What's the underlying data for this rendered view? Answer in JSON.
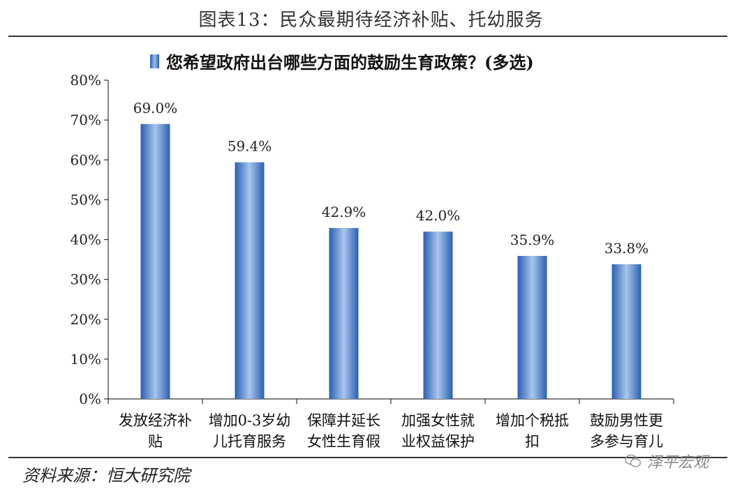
{
  "figure_title": "图表13：民众最期待经济补贴、托幼服务",
  "source": "资料来源：恒大研究院",
  "watermark": "泽平宏观",
  "chart_data": {
    "type": "bar",
    "title": "您希望政府出台哪些方面的鼓励生育政策？(多选)",
    "categories": [
      [
        "发放经济补",
        "贴"
      ],
      [
        "增加0-3岁幼",
        "儿托育服务"
      ],
      [
        "保障并延长",
        "女性生育假"
      ],
      [
        "加强女性就",
        "业权益保护"
      ],
      [
        "增加个税抵",
        "扣"
      ],
      [
        "鼓励男性更",
        "多参与育儿"
      ]
    ],
    "values": [
      69.0,
      59.4,
      42.9,
      42.0,
      35.9,
      33.8
    ],
    "data_labels": [
      "69.0%",
      "59.4%",
      "42.9%",
      "42.0%",
      "35.9%",
      "33.8%"
    ],
    "ylim": [
      0,
      80
    ],
    "yticks": [
      "0%",
      "10%",
      "20%",
      "30%",
      "40%",
      "50%",
      "60%",
      "70%",
      "80%"
    ],
    "grid": false,
    "bar_color": "#2a5fb5",
    "bar_highlight": "#a8c6ea",
    "legend_position": "top"
  }
}
